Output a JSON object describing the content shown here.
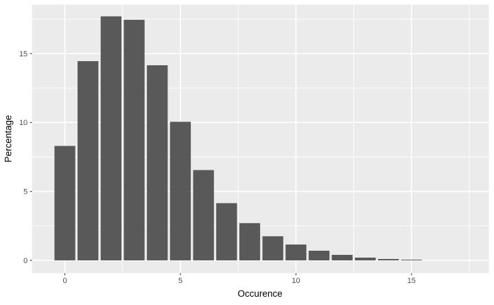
{
  "chart_data": {
    "type": "bar",
    "subtype": "histogram",
    "title": "",
    "xlabel": "Occurence",
    "ylabel": "Percentage",
    "x": [
      0,
      1,
      2,
      3,
      4,
      5,
      6,
      7,
      8,
      9,
      10,
      11,
      12,
      13,
      14,
      15
    ],
    "values": [
      8.3,
      14.45,
      17.7,
      17.45,
      14.15,
      10.05,
      6.55,
      4.15,
      2.7,
      1.75,
      1.15,
      0.7,
      0.4,
      0.2,
      0.1,
      0.05
    ],
    "bar_width": 0.9,
    "x_ticks": [
      0,
      5,
      10,
      15
    ],
    "x_tick_labels": [
      "0",
      "5",
      "10",
      "15"
    ],
    "y_ticks": [
      0,
      5,
      10,
      15
    ],
    "y_tick_labels": [
      "0",
      "5",
      "10",
      "15"
    ],
    "x_minor_gridlines": [
      2.5,
      7.5,
      12.5,
      17.5
    ],
    "y_minor_gridlines": [
      2.5,
      7.5,
      12.5,
      17.5
    ],
    "xlim": [
      -1.42,
      18.35
    ],
    "ylim": [
      -0.93,
      18.55
    ],
    "grid": "on",
    "legend": "none",
    "colors": {
      "bar_fill": "#595959",
      "panel_background": "#EBEBEB",
      "gridline": "#FFFFFF",
      "tick_mark": "#333333",
      "tick_label": "#4D4D4D",
      "axis_title": "#000000",
      "figure_background": "#FFFFFF"
    }
  }
}
